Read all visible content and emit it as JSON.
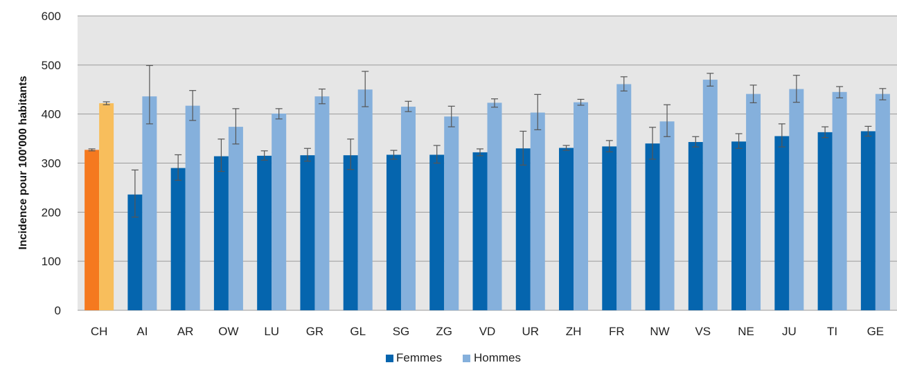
{
  "chart_data": {
    "type": "bar",
    "title": "",
    "xlabel": "",
    "ylabel": "Incidence pour 100'000 habitants",
    "ylim": [
      0,
      600
    ],
    "yticks": [
      0,
      100,
      200,
      300,
      400,
      500,
      600
    ],
    "grid": true,
    "legend_position": "bottom-center",
    "categories": [
      "CH",
      "AI",
      "AR",
      "OW",
      "LU",
      "GR",
      "GL",
      "SG",
      "ZG",
      "VD",
      "UR",
      "ZH",
      "FR",
      "NW",
      "VS",
      "NE",
      "JU",
      "TI",
      "GE"
    ],
    "series": [
      {
        "name": "Femmes",
        "values": [
          327,
          236,
          290,
          314,
          315,
          316,
          316,
          317,
          317,
          322,
          330,
          331,
          334,
          340,
          343,
          344,
          355,
          363,
          365
        ],
        "error_low": [
          325,
          190,
          265,
          283,
          306,
          304,
          287,
          308,
          300,
          315,
          296,
          326,
          323,
          308,
          333,
          330,
          333,
          352,
          355
        ],
        "error_high": [
          329,
          286,
          317,
          349,
          325,
          330,
          349,
          326,
          336,
          329,
          365,
          336,
          346,
          373,
          354,
          360,
          380,
          374,
          375
        ],
        "color": "#0565ae",
        "highlight_color": "#f5791f"
      },
      {
        "name": "Hommes",
        "values": [
          422,
          436,
          417,
          374,
          401,
          436,
          450,
          415,
          395,
          423,
          403,
          424,
          461,
          385,
          470,
          441,
          451,
          445,
          441
        ],
        "error_low": [
          419,
          380,
          387,
          339,
          390,
          421,
          415,
          405,
          374,
          414,
          368,
          418,
          447,
          354,
          457,
          423,
          424,
          433,
          429
        ],
        "error_high": [
          425,
          499,
          448,
          411,
          411,
          451,
          487,
          426,
          416,
          431,
          440,
          430,
          476,
          419,
          483,
          459,
          479,
          456,
          452
        ],
        "color": "#85b0dc",
        "highlight_color": "#f8be5c"
      }
    ]
  },
  "colors": {
    "plot_background": "#e6e6e6",
    "gridline": "#9a9a9a",
    "error_bar": "#555555"
  }
}
